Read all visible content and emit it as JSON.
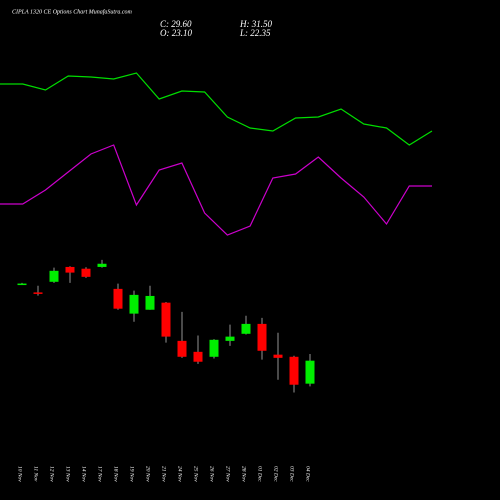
{
  "chart_data": [
    {
      "type": "line",
      "ylim": [
        0,
        100
      ],
      "series": [
        {
          "color": "#00dd00",
          "values": [
            78,
            78,
            75,
            82,
            81.5,
            80.5,
            83.5,
            70.5,
            74.5,
            74,
            61.5,
            56,
            54.5,
            61,
            61.5,
            65.5,
            58,
            56,
            47.5,
            54.5
          ]
        },
        {
          "color": "#cc00cc",
          "values": [
            18,
            18,
            25,
            34,
            43,
            47.5,
            17.5,
            35,
            38.5,
            13.5,
            2.5,
            7,
            31,
            33,
            41.5,
            31,
            21.5,
            8,
            27,
            27
          ]
        }
      ]
    },
    {
      "type": "candlestick",
      "title": "CIPLA 1320 CE Options Chart MunafaSutra.com",
      "header_labels": [
        "C: 29.60",
        "H: 31.50",
        "O: 23.10",
        "L: 22.35"
      ],
      "categories": [
        "10 Nov",
        "11 Nov",
        "12 Nov",
        "13 Nov",
        "14 Nov",
        "17 Nov",
        "18 Nov",
        "19 Nov",
        "20 Nov",
        "21 Nov",
        "24 Nov",
        "25 Nov",
        "26 Nov",
        "27 Nov",
        "28 Nov",
        "01 Dec",
        "02 Dec",
        "03 Dec",
        "04 Dec"
      ],
      "open": [
        51.4,
        48.9,
        51.9,
        56.1,
        55.6,
        56.1,
        49.9,
        42.9,
        44.0,
        46.0,
        35.2,
        32.1,
        30.7,
        35.2,
        37.2,
        40.0,
        31.3,
        30.7,
        23.1
      ],
      "high": [
        51.6,
        50.8,
        55.9,
        56.3,
        56.0,
        58.1,
        51.4,
        49.4,
        50.8,
        46.2,
        43.4,
        36.7,
        35.7,
        39.8,
        42.3,
        41.7,
        37.5,
        31.0,
        31.5
      ],
      "low": [
        51.2,
        48.0,
        51.6,
        51.6,
        53.0,
        55.9,
        44.0,
        40.6,
        44.0,
        34.7,
        30.4,
        28.7,
        30.2,
        33.8,
        37.0,
        29.9,
        24.2,
        20.6,
        22.35
      ],
      "close": [
        51.4,
        48.8,
        55.0,
        54.5,
        53.3,
        57.0,
        44.3,
        48.2,
        47.9,
        36.4,
        30.7,
        29.3,
        35.5,
        36.4,
        40.0,
        32.4,
        30.4,
        22.8,
        29.6
      ],
      "up_color": "#00ee00",
      "down_color": "#ff0000",
      "ylim": [
        10,
        64
      ]
    }
  ]
}
